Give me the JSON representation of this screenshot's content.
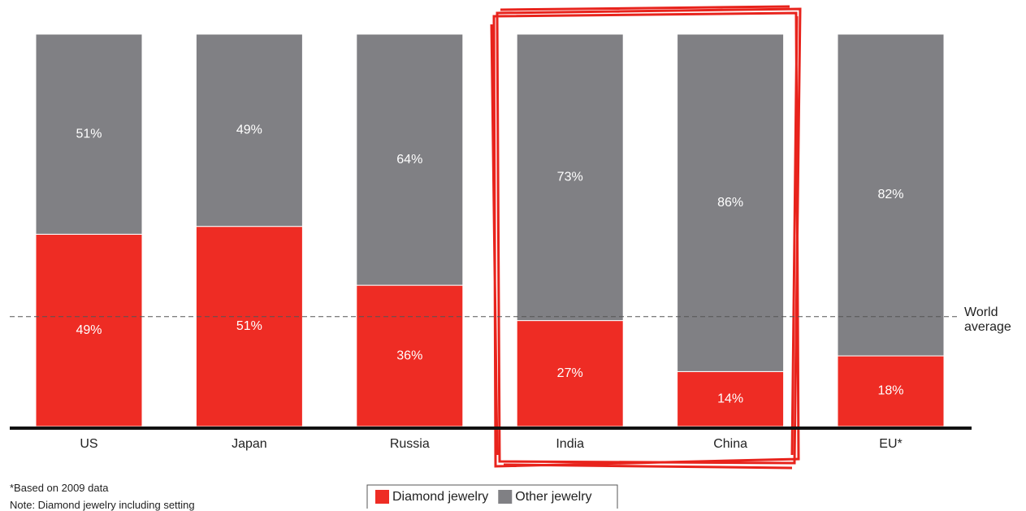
{
  "chart_data": {
    "type": "stacked-bar",
    "categories": [
      "US",
      "Japan",
      "Russia",
      "India",
      "China",
      "EU*"
    ],
    "series": [
      {
        "name": "Diamond jewelry",
        "color": "#ee2c24",
        "values": [
          49,
          51,
          36,
          27,
          14,
          18
        ],
        "value_labels": [
          "49%",
          "51%",
          "36%",
          "27%",
          "14%",
          "18%"
        ]
      },
      {
        "name": "Other jewelry",
        "color": "#808084",
        "values": [
          51,
          49,
          64,
          73,
          86,
          82
        ],
        "value_labels": [
          "51%",
          "49%",
          "64%",
          "73%",
          "86%",
          "82%"
        ]
      }
    ],
    "ylim": [
      0,
      100
    ],
    "world_average": {
      "label": "World average",
      "value": 28
    },
    "notes": [
      "*Based on 2009 data",
      "Note: Diamond jewelry including setting"
    ]
  }
}
